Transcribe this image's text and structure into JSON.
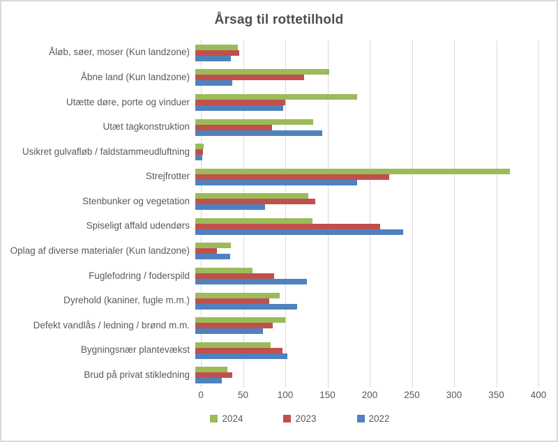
{
  "chart": {
    "title": "Årsag til rottetilhold"
  },
  "colors": {
    "s2024": "#9bbb59",
    "s2023": "#c0504d",
    "s2022": "#4f81bd",
    "gridline": "#d9d9d9",
    "text": "#595959"
  },
  "chart_data": {
    "type": "bar",
    "orientation": "horizontal",
    "title": "Årsag til rottetilhold",
    "categories": [
      "Åløb, søer, moser  (Kun landzone)",
      "Åbne land (Kun landzone)",
      "Utætte døre, porte og vinduer",
      "Utæt tagkonstruktion",
      "Usikret gulvafløb / faldstammeudluftning",
      "Strejfrotter",
      "Stenbunker og vegetation",
      "Spiseligt affald udendørs",
      "Oplag af diverse materialer (Kun landzone)",
      "Fuglefodring / foderspild",
      "Dyrehold (kaniner, fugle m.m.)",
      "Defekt vandlås / ledning / brønd m.m.",
      "Bygningsnær plantevækst",
      "Brud på privat stikledning"
    ],
    "series": [
      {
        "name": "2024",
        "color": "#9bbb59",
        "values": [
          50,
          159,
          192,
          140,
          10,
          373,
          134,
          139,
          42,
          68,
          100,
          107,
          89,
          38
        ]
      },
      {
        "name": "2023",
        "color": "#c0504d",
        "values": [
          52,
          129,
          107,
          91,
          9,
          230,
          142,
          219,
          26,
          93,
          88,
          92,
          103,
          44
        ]
      },
      {
        "name": "2022",
        "color": "#4f81bd",
        "values": [
          42,
          44,
          104,
          150,
          8,
          192,
          83,
          246,
          41,
          132,
          121,
          80,
          109,
          31
        ]
      }
    ],
    "xlim": [
      0,
      400
    ],
    "x_ticks": [
      0,
      50,
      100,
      150,
      200,
      250,
      300,
      350,
      400
    ],
    "grid": true,
    "legend_position": "bottom",
    "legend": [
      "2024",
      "2023",
      "2022"
    ]
  }
}
